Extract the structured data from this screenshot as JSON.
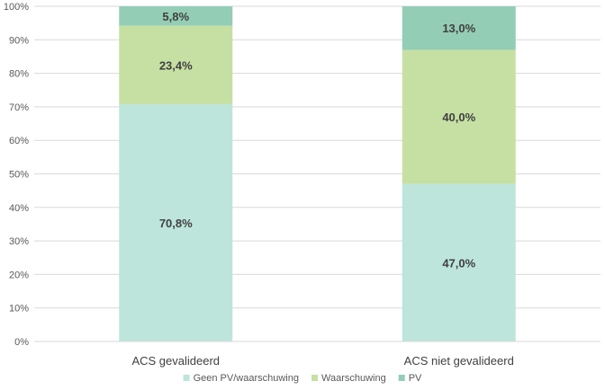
{
  "chart_data": {
    "type": "bar",
    "stacked": true,
    "categories": [
      "ACS gevalideerd",
      "ACS niet gevalideerd"
    ],
    "series": [
      {
        "name": "Geen PV/waarschuwing",
        "values": [
          70.8,
          47.0
        ],
        "labels": [
          "70,8%",
          "47,0%"
        ],
        "color": "#bde5db"
      },
      {
        "name": "Waarschuwing",
        "values": [
          23.4,
          40.0
        ],
        "labels": [
          "23,4%",
          "40,0%"
        ],
        "color": "#c6e0a4"
      },
      {
        "name": "PV",
        "values": [
          5.8,
          13.0
        ],
        "labels": [
          "5,8%",
          "13,0%"
        ],
        "color": "#94cdb6"
      }
    ],
    "ylim": [
      0,
      100
    ],
    "yticks": [
      "0%",
      "10%",
      "20%",
      "30%",
      "40%",
      "50%",
      "60%",
      "70%",
      "80%",
      "90%",
      "100%"
    ],
    "grid": true,
    "legend": "bottom"
  }
}
